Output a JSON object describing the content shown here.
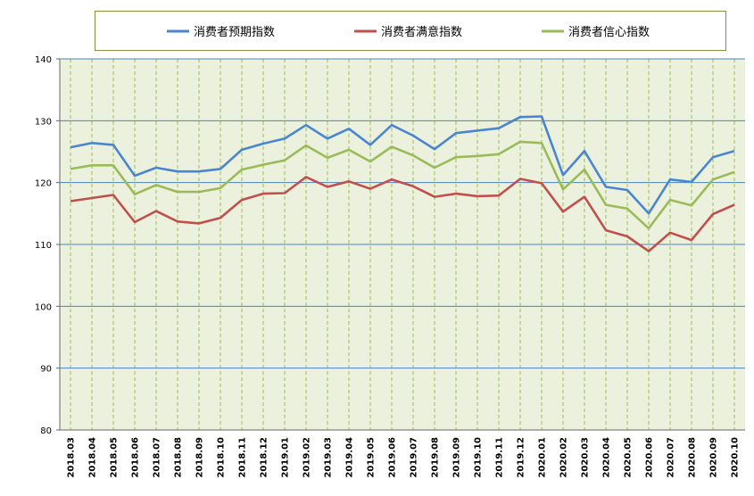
{
  "chart_data": {
    "type": "line",
    "categories": [
      "2018.03",
      "2018.04",
      "2018.05",
      "2018.06",
      "2018.07",
      "2018.08",
      "2018.09",
      "2018.10",
      "2018.11",
      "2018.12",
      "2019.01",
      "2019.02",
      "2019.03",
      "2019.04",
      "2019.05",
      "2019.06",
      "2019.07",
      "2019.08",
      "2019.09",
      "2019.10",
      "2019.11",
      "2019.12",
      "2020.01",
      "2020.02",
      "2020.03",
      "2020.04",
      "2020.05",
      "2020.06",
      "2020.07",
      "2020.08",
      "2020.09",
      "2020.10"
    ],
    "series": [
      {
        "name": "消费者预期指数",
        "color": "#4a86cf",
        "values": [
          125.7,
          126.4,
          126.1,
          121.1,
          122.4,
          121.8,
          121.8,
          122.2,
          125.3,
          126.3,
          127.1,
          129.3,
          127.1,
          128.7,
          126.1,
          129.3,
          127.6,
          125.4,
          128.0,
          128.4,
          128.8,
          130.6,
          130.7,
          121.2,
          125.1,
          119.3,
          118.8,
          115.0,
          120.5,
          120.1,
          124.1,
          125.1
        ]
      },
      {
        "name": "消费者满意指数",
        "color": "#c0504d",
        "values": [
          117.0,
          117.5,
          118.0,
          113.6,
          115.4,
          113.7,
          113.4,
          114.3,
          117.2,
          118.2,
          118.3,
          120.9,
          119.3,
          120.2,
          119.0,
          120.5,
          119.4,
          117.7,
          118.2,
          117.8,
          117.9,
          120.6,
          119.9,
          115.3,
          117.7,
          112.3,
          111.3,
          108.9,
          111.9,
          110.7,
          114.9,
          116.4
        ]
      },
      {
        "name": "消费者信心指数",
        "color": "#9bbb59",
        "values": [
          122.2,
          122.8,
          122.8,
          118.1,
          119.6,
          118.5,
          118.5,
          119.1,
          122.1,
          122.9,
          123.6,
          126.0,
          124.0,
          125.3,
          123.4,
          125.8,
          124.4,
          122.4,
          124.1,
          124.3,
          124.6,
          126.6,
          126.4,
          118.9,
          122.1,
          116.4,
          115.8,
          112.6,
          117.2,
          116.3,
          120.5,
          121.7
        ]
      }
    ],
    "ylim": [
      80,
      140
    ],
    "yticks": [
      "80",
      "90",
      "100",
      "110",
      "120",
      "130",
      "140"
    ],
    "grid": true,
    "legend": "top"
  }
}
